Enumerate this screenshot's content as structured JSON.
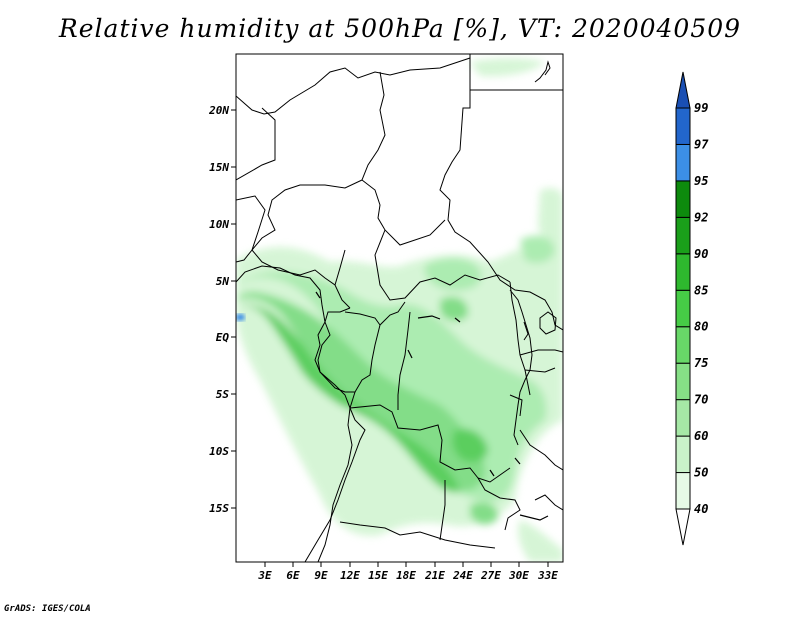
{
  "title": "Relative humidity at 500hPa [%], VT: 2020040509",
  "footer": "GrADS: IGES/COLA",
  "lat_labels": [
    "20N",
    "15N",
    "10N",
    "5N",
    "EQ",
    "5S",
    "10S",
    "15S"
  ],
  "lon_labels": [
    "3E",
    "6E",
    "9E",
    "12E",
    "15E",
    "18E",
    "21E",
    "24E",
    "27E",
    "30E",
    "33E"
  ],
  "legend": {
    "levels": [
      "40",
      "50",
      "60",
      "70",
      "75",
      "80",
      "85",
      "90",
      "92",
      "95",
      "97",
      "99"
    ],
    "colors": [
      "#ffffff",
      "#e6fae6",
      "#c9f2c9",
      "#a6e8a6",
      "#86df86",
      "#68d868",
      "#46cc46",
      "#2eb82e",
      "#1a9f1a",
      "#0d8a0d",
      "#3c8fe6",
      "#2266cc",
      "#1a4fb3"
    ]
  }
}
